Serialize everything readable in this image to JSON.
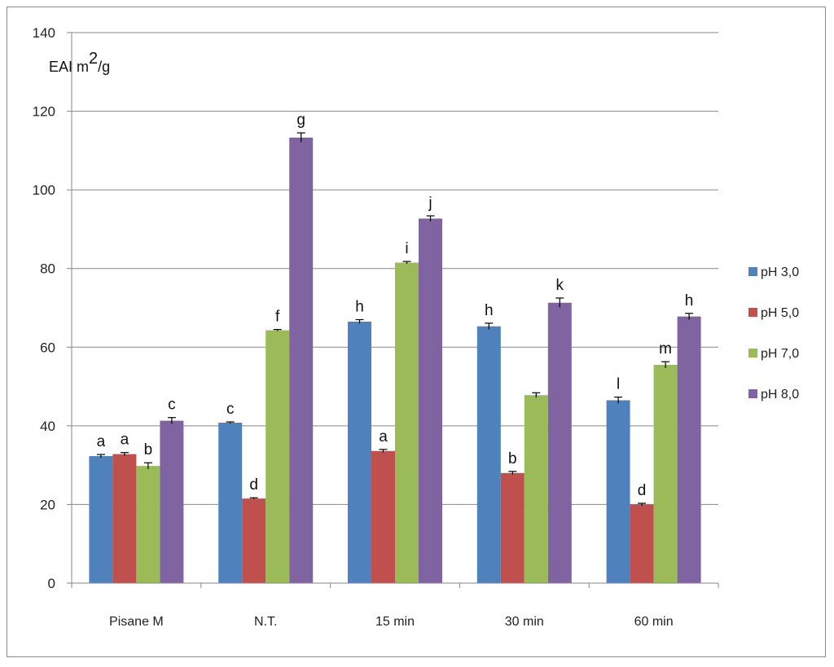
{
  "chart_data": {
    "type": "bar",
    "title": "",
    "ylabel": "EAI m",
    "ylabel_sup": "2",
    "ylabel_tail": "/g",
    "xlabel": "",
    "ylim": [
      0,
      140
    ],
    "yticks": [
      0,
      20,
      40,
      60,
      80,
      100,
      120,
      140
    ],
    "grid": true,
    "legend_position": "right",
    "categories": [
      "Pisane M",
      "N.T.",
      "15 min",
      "30 min",
      "60 min"
    ],
    "series": [
      {
        "name": "pH 3,0",
        "color": "#4f81bd",
        "values": [
          32.3,
          40.8,
          66.5,
          65.3,
          46.5
        ],
        "errors": [
          0.4,
          0.2,
          0.5,
          0.8,
          0.8
        ],
        "labels": [
          "a",
          "c",
          "h",
          "h",
          "l"
        ]
      },
      {
        "name": "pH 5,0",
        "color": "#c0504d",
        "values": [
          32.8,
          21.5,
          33.6,
          28.0,
          20.0
        ],
        "errors": [
          0.4,
          0.2,
          0.4,
          0.4,
          0.3
        ],
        "labels": [
          "a",
          "d",
          "a",
          "b",
          "d"
        ]
      },
      {
        "name": "pH 7,0",
        "color": "#9bbb59",
        "values": [
          29.8,
          64.3,
          81.5,
          47.8,
          55.5
        ],
        "errors": [
          0.8,
          0.2,
          0.3,
          0.6,
          0.8
        ],
        "labels": [
          "b",
          "f",
          "i",
          "",
          "m"
        ]
      },
      {
        "name": "pH 8,0",
        "color": "#8064a2",
        "values": [
          41.3,
          113.3,
          92.7,
          71.3,
          67.8
        ],
        "errors": [
          0.8,
          1.2,
          0.7,
          1.2,
          0.8
        ],
        "labels": [
          "c",
          "g",
          "j",
          "k",
          "h"
        ]
      }
    ]
  }
}
